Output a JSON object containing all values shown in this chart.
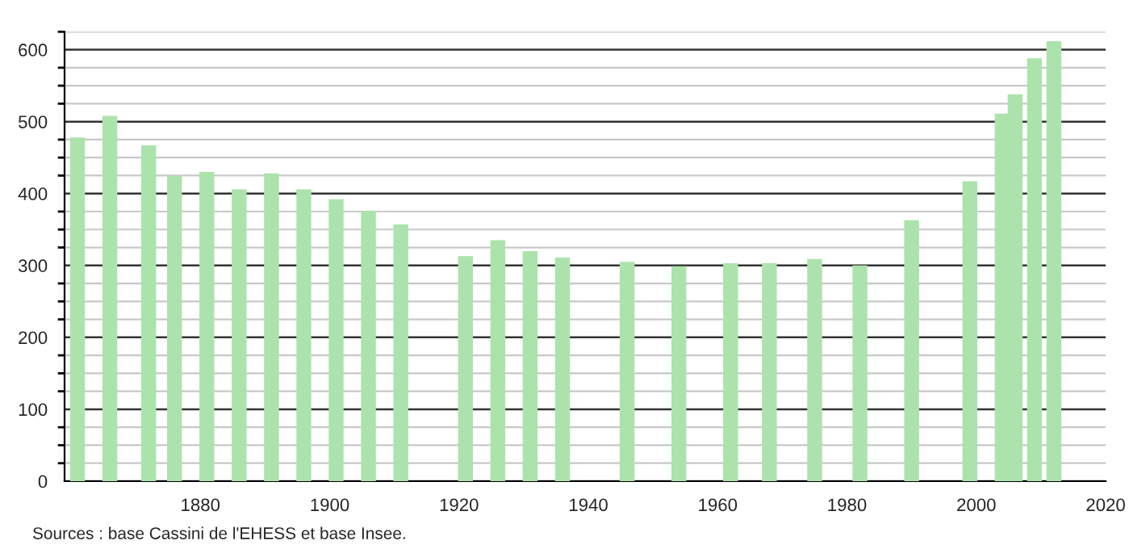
{
  "chart_data": {
    "type": "bar",
    "x": [
      1861,
      1866,
      1872,
      1876,
      1881,
      1886,
      1891,
      1896,
      1901,
      1906,
      1911,
      1921,
      1926,
      1931,
      1936,
      1946,
      1954,
      1962,
      1968,
      1975,
      1982,
      1990,
      1999,
      2004,
      2006,
      2009,
      2012
    ],
    "values": [
      478,
      508,
      467,
      425,
      430,
      406,
      428,
      406,
      392,
      376,
      357,
      313,
      335,
      320,
      311,
      305,
      299,
      303,
      303,
      309,
      300,
      363,
      417,
      511,
      538,
      588,
      612
    ],
    "color": "#ace3ac",
    "xlim": [
      1859,
      2020
    ],
    "xticks": [
      1880,
      1900,
      1920,
      1940,
      1960,
      1980,
      2000,
      2020
    ],
    "ylim": [
      0,
      625
    ],
    "yticks": [
      0,
      100,
      200,
      300,
      400,
      500,
      600
    ],
    "grid": "y",
    "annotations": [
      "Sources : base Cassini de l'EHESS et base Insee."
    ]
  }
}
